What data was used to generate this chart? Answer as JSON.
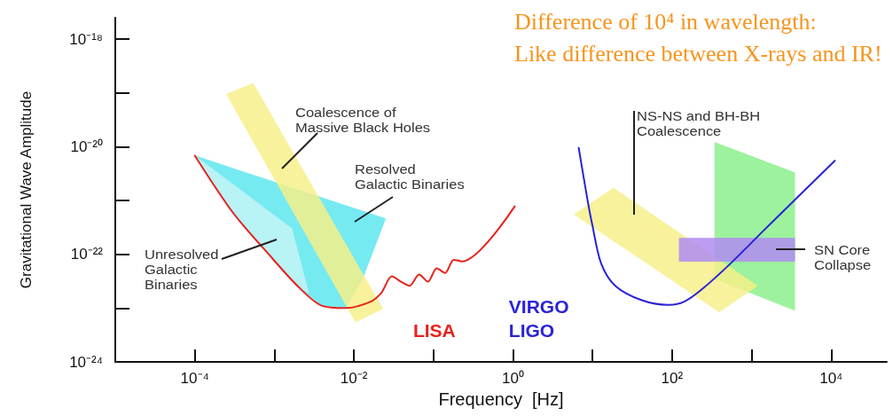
{
  "chart_data": {
    "type": "line",
    "title": "Difference of 10⁴ in wavelength:",
    "subtitle": "Like difference between X-rays and IR!",
    "xlabel": "Frequency  [Hz]",
    "ylabel": "Gravitational Wave Amplitude",
    "log": "xy",
    "xlim": [
      1e-05,
      50000
    ],
    "ylim": [
      1e-24,
      2.5e-18
    ],
    "xticks": [
      {
        "value": 0.0001,
        "label": "10⁻⁴"
      },
      {
        "value": 0.001,
        "label": null
      },
      {
        "value": 0.01,
        "label": "10⁻²"
      },
      {
        "value": 0.1,
        "label": null
      },
      {
        "value": 1,
        "label": "10⁰"
      },
      {
        "value": 10,
        "label": null
      },
      {
        "value": 100,
        "label": "10²"
      },
      {
        "value": 1000,
        "label": null
      },
      {
        "value": 10000,
        "label": "10⁴"
      }
    ],
    "yticks": [
      {
        "value": 1e-24,
        "label": "10⁻²⁴"
      },
      {
        "value": 1e-23,
        "label": null
      },
      {
        "value": 1e-22,
        "label": "10⁻²²"
      },
      {
        "value": 1e-21,
        "label": null
      },
      {
        "value": 1e-20,
        "label": "10⁻²⁰"
      },
      {
        "value": 1e-19,
        "label": null
      },
      {
        "value": 1e-18,
        "label": "10⁻¹⁸"
      }
    ],
    "marker": "none",
    "grid": false,
    "legend": false,
    "series": [
      {
        "type": "area",
        "color": "#5ee6ef",
        "x": [
          0.0001,
          0.025,
          0.013,
          0.0079,
          0.004,
          0.002,
          0.00085,
          0.0003
        ],
        "values": [
          6.8e-21,
          4.6e-22,
          3.7e-23,
          1e-23,
          1.1e-23,
          2.5e-23,
          1e-22,
          6e-22
        ]
      },
      {
        "type": "area",
        "color": "#c4f4f6",
        "x": [
          0.0001,
          0.00166,
          0.0027,
          0.002,
          0.00085,
          0.0003
        ],
        "values": [
          6.8e-21,
          3e-22,
          1.9e-23,
          2.5e-23,
          1e-22,
          6e-22
        ]
      },
      {
        "type": "area",
        "color": "#f6f08a",
        "x": [
          0.00025,
          0.00054,
          0.023,
          0.0105
        ],
        "values": [
          9.5e-20,
          1.5e-19,
          9.8e-24,
          5.5e-24
        ]
      },
      {
        "name": "LISA",
        "color": "#e8211c",
        "x": [
          0.0001,
          0.0003,
          0.00085,
          0.002,
          0.004,
          0.0079,
          0.016,
          0.022,
          0.03,
          0.039,
          0.05,
          0.066,
          0.085,
          0.11,
          0.14,
          0.18,
          0.23,
          1.05
        ],
        "values": [
          6.8e-21,
          6e-22,
          1e-22,
          2.5e-23,
          1.1e-23,
          1e-23,
          1.3e-23,
          1.9e-23,
          3.9e-23,
          3.1e-23,
          2.6e-23,
          4.2e-23,
          3.1e-23,
          5.5e-23,
          4.5e-23,
          7.9e-23,
          7.4e-23,
          7.8e-22
        ]
      },
      {
        "type": "area",
        "color": "#8cf08c",
        "x": [
          344,
          3480,
          3480,
          344
        ],
        "values": [
          1.2e-20,
          3.3e-21,
          9.1e-24,
          3.5e-23
        ]
      },
      {
        "type": "area",
        "color": "#f6f08a",
        "x": [
          5.9,
          18.3,
          1180,
          391
        ],
        "values": [
          5.5e-22,
          1.7e-21,
          2.6e-23,
          8.5e-24
        ]
      },
      {
        "type": "area",
        "color": "#b08cf2",
        "x": [
          123,
          3480,
          3480,
          123
        ],
        "values": [
          2e-22,
          2e-22,
          7.4e-23,
          7.4e-23
        ]
      },
      {
        "name": "VIRGO\nLIGO",
        "color": "#2a22d8",
        "x": [
          6.7,
          8.7,
          9.9,
          12.8,
          19.3,
          41.7,
          90,
          140,
          234,
          546,
          1530,
          3660,
          11100
        ],
        "values": [
          9.5e-21,
          9.7e-22,
          3.6e-22,
          6.8e-23,
          2.6e-23,
          1.4e-23,
          1.15e-23,
          1.3e-23,
          2.2e-23,
          6.8e-23,
          3.1e-22,
          1.1e-21,
          5.5e-21
        ]
      }
    ],
    "annotations": [
      "Coalescence of\nMassive Black Holes",
      "Resolved\nGalactic Binaries",
      "Unresolved\nGalactic\nBinaries",
      "NS-NS and BH-BH\nCoalescence",
      "SN Core\nCollapse"
    ]
  }
}
